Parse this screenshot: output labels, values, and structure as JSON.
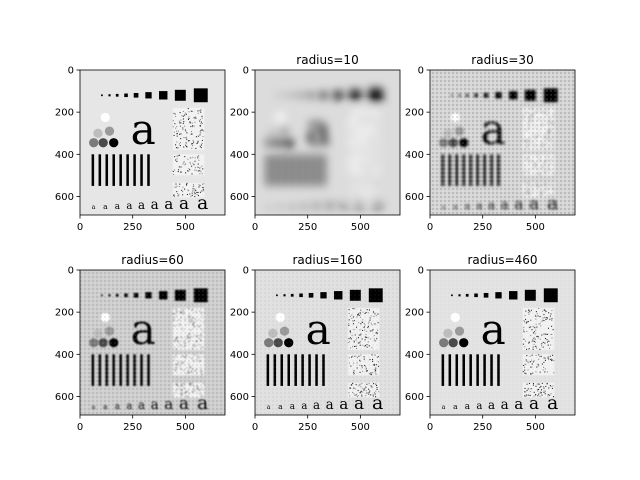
{
  "chart_data": [
    {
      "type": "image",
      "title": "",
      "image_bg": "#e6e6e6",
      "blur": 0,
      "grain": 0,
      "xticks": [
        0,
        250,
        500
      ],
      "yticks": [
        0,
        200,
        400,
        600
      ],
      "xlim": [
        0,
        688
      ],
      "ylim": [
        688,
        0
      ]
    },
    {
      "type": "image",
      "title": "radius=10",
      "image_bg": "#dcdcdc",
      "blur": 4.5,
      "grain": 0,
      "xticks": [
        0,
        250,
        500
      ],
      "yticks": [
        0,
        200,
        400,
        600
      ],
      "xlim": [
        0,
        688
      ],
      "ylim": [
        688,
        0
      ]
    },
    {
      "type": "image",
      "title": "radius=30",
      "image_bg": "#d6d6d6",
      "blur": 1.4,
      "grain": 0.35,
      "xticks": [
        0,
        250,
        500
      ],
      "yticks": [
        0,
        200,
        400,
        600
      ],
      "xlim": [
        0,
        688
      ],
      "ylim": [
        688,
        0
      ]
    },
    {
      "type": "image",
      "title": "radius=60",
      "image_bg": "#cfcfcf",
      "blur": 0.7,
      "grain": 0.25,
      "xticks": [
        0,
        250,
        500
      ],
      "yticks": [
        0,
        200,
        400,
        600
      ],
      "xlim": [
        0,
        688
      ],
      "ylim": [
        688,
        0
      ]
    },
    {
      "type": "image",
      "title": "radius=160",
      "image_bg": "#e0e0e0",
      "blur": 0.35,
      "grain": 0.1,
      "xticks": [
        0,
        250,
        500
      ],
      "yticks": [
        0,
        200,
        400,
        600
      ],
      "xlim": [
        0,
        688
      ],
      "ylim": [
        688,
        0
      ]
    },
    {
      "type": "image",
      "title": "radius=460",
      "image_bg": "#e3e3e3",
      "blur": 0.2,
      "grain": 0.05,
      "xticks": [
        0,
        250,
        500
      ],
      "yticks": [
        0,
        200,
        400,
        600
      ],
      "xlim": [
        0,
        688
      ],
      "ylim": [
        688,
        0
      ]
    }
  ]
}
